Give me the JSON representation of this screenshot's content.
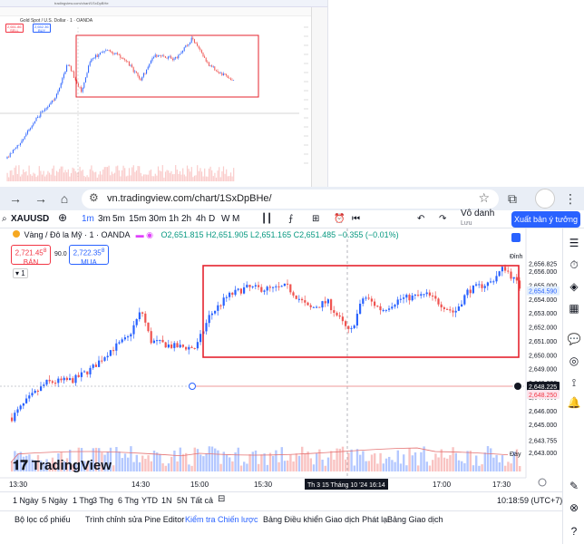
{
  "mini": {
    "url": "tradingview.com/chart/1SxDpBHe",
    "symbol": "Gold Spot / U.S. Dollar · 1 · OANDA",
    "bid": "2,651.86",
    "ask": "2,652.36",
    "bid_label": "SELL",
    "ask_label": "BUY"
  },
  "browser": {
    "url": "vn.tradingview.com/chart/1SxDpBHe/"
  },
  "toolbar": {
    "symbol": "XAUUSD",
    "intervals": [
      "1m",
      "3m",
      "5m",
      "15m",
      "30m",
      "1h",
      "2h",
      "4h",
      "D",
      "W",
      "M"
    ],
    "selected_interval": "1m",
    "layout_name": "Vô danh",
    "layout_status": "Lưu",
    "publish_label": "Xuất bản ý tưởng"
  },
  "chart": {
    "title": "Vàng / Đô la Mỹ · 1 · OANDA",
    "ohlc": "O2,651.815 H2,651.905 L2,651.165 C2,651.485 −0.355 (−0.01%)",
    "bid_price": "2,721.45",
    "bid_sup": "8",
    "bid_label": "BÁN",
    "spread": "90.0",
    "ask_price": "2,722.35",
    "ask_sup": "8",
    "ask_label": "MUA",
    "pane_badge": "1",
    "peak_label": "Đỉnh",
    "bottom_label": "Đáy",
    "logo": "TradingView",
    "y_ticks": [
      "2,656.000",
      "2,655.000",
      "2,654.000",
      "2,653.000",
      "2,652.000",
      "2,651.000",
      "2,650.000",
      "2,649.000",
      "2,648.000",
      "2,647.000",
      "2,646.000",
      "2,645.000",
      "2,644.000",
      "2,643.000"
    ],
    "price_tags": {
      "top": "2,656.825",
      "current": "2,654.590",
      "line1": "2,648.225",
      "line2": "2,648.250",
      "low": "2,643.755"
    },
    "x_ticks": [
      "13:30",
      "14:30",
      "15:00",
      "15:30",
      "17:00",
      "17:30"
    ],
    "crosshair_time": "Th 3 15 Tháng 10 '24  16:14",
    "colors": {
      "up": "#2962ff",
      "down": "#ef5350",
      "box": "#e5232e"
    }
  },
  "range_bar": {
    "items": [
      "1 Ngày",
      "5 Ngày",
      "1 Thg",
      "3 Thg",
      "6 Thg",
      "YTD",
      "1N",
      "5N",
      "Tất cả"
    ],
    "clock": "10:18:59 (UTC+7)"
  },
  "bottom_tabs": [
    "Bộ lọc cổ phiếu",
    "Trình chỉnh sửa Pine Editor",
    "Kiểm tra Chiến lược",
    "Bảng Điều khiển Giao dịch Phát lại",
    "Bảng Giao dịch"
  ]
}
